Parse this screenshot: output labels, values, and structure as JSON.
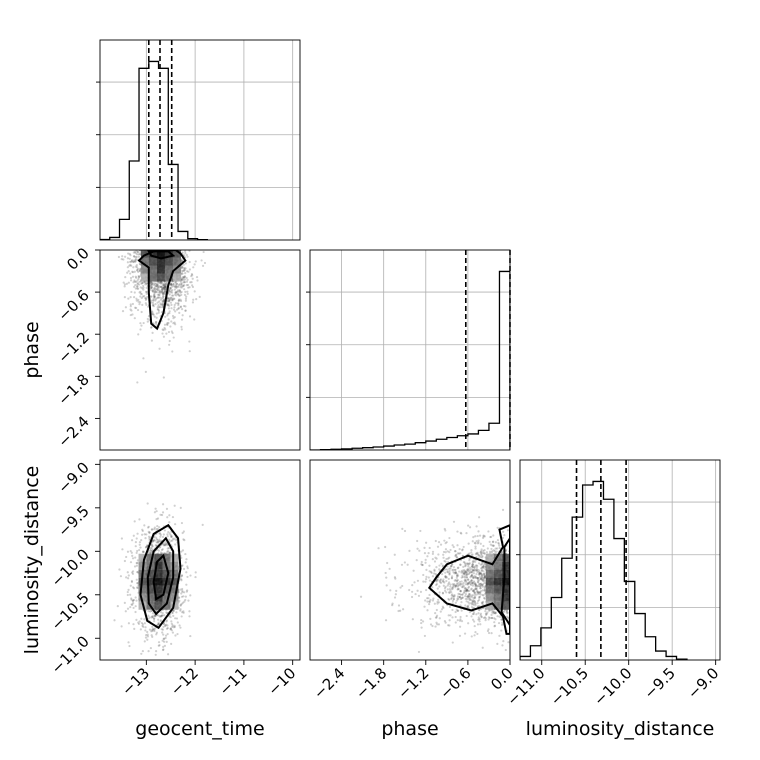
{
  "chart_data": {
    "type": "corner",
    "parameters": [
      "geocent_time",
      "phase",
      "luminosity_distance"
    ],
    "axes": {
      "geocent_time": {
        "label": "geocent_time",
        "range": [
          -13.95,
          -9.85
        ],
        "ticks": [
          -13,
          -12,
          -11,
          -10
        ],
        "tick_labels": [
          "−13",
          "−12",
          "−11",
          "−10"
        ]
      },
      "phase": {
        "label": "phase",
        "range": [
          -2.85,
          0.0
        ],
        "ticks": [
          -2.4,
          -1.8,
          -1.2,
          -0.6,
          0.0
        ],
        "tick_labels": [
          "−2.4",
          "−1.8",
          "−1.2",
          "−0.6",
          "0.0"
        ]
      },
      "luminosity_distance": {
        "label": "luminosity_distance",
        "range": [
          -11.25,
          -8.95
        ],
        "ticks": [
          -11.0,
          -10.5,
          -10.0,
          -9.5,
          -9.0
        ],
        "tick_labels": [
          "−11.0",
          "−10.5",
          "−10.0",
          "−9.5",
          "−9.0"
        ]
      }
    },
    "histograms": {
      "geocent_time": {
        "edges": [
          -13.95,
          -13.75,
          -13.55,
          -13.35,
          -13.15,
          -12.95,
          -12.75,
          -12.55,
          -12.35,
          -12.15,
          -11.95,
          -11.75
        ],
        "counts": [
          0.3,
          1.5,
          12,
          46,
          100,
          104,
          100,
          44,
          5,
          0.8,
          0.2
        ],
        "quantiles": [
          -12.95,
          -12.72,
          -12.48
        ],
        "grid": true
      },
      "phase": {
        "edges": [
          -2.85,
          -2.7,
          -2.55,
          -2.4,
          -2.25,
          -2.1,
          -1.95,
          -1.8,
          -1.65,
          -1.5,
          -1.35,
          -1.2,
          -1.05,
          -0.9,
          -0.75,
          -0.6,
          -0.45,
          -0.3,
          -0.15,
          0.0
        ],
        "counts": [
          0,
          0.2,
          0.4,
          0.6,
          1,
          1.3,
          1.7,
          2.2,
          2.8,
          3.3,
          4.1,
          5,
          6,
          7,
          8,
          9,
          11,
          15,
          100
        ],
        "quantiles": [
          -0.63,
          0.0
        ],
        "grid": true
      },
      "luminosity_distance": {
        "edges": [
          -11.25,
          -11.13,
          -11.01,
          -10.89,
          -10.77,
          -10.65,
          -10.53,
          -10.41,
          -10.29,
          -10.17,
          -10.05,
          -9.93,
          -9.81,
          -9.69,
          -9.57,
          -9.45,
          -9.33
        ],
        "counts": [
          2,
          8,
          18,
          35,
          57,
          80,
          98,
          100,
          90,
          68,
          44,
          26,
          13,
          5,
          2,
          0.5
        ],
        "quantiles": [
          -10.6,
          -10.32,
          -10.03
        ],
        "grid": true
      }
    },
    "scatter_panels": [
      {
        "x": "geocent_time",
        "y": "phase",
        "density_peak": [
          -12.7,
          -0.05
        ],
        "spread": [
          0.3,
          0.45
        ],
        "contours": [
          [
            [
              -12.85,
              -0.02
            ],
            [
              -13.05,
              -0.08
            ],
            [
              -13.15,
              -0.15
            ],
            [
              -12.95,
              -0.25
            ],
            [
              -12.95,
              -0.6
            ],
            [
              -12.9,
              -1.05
            ],
            [
              -12.78,
              -1.12
            ],
            [
              -12.65,
              -0.9
            ],
            [
              -12.55,
              -0.5
            ],
            [
              -12.45,
              -0.3
            ],
            [
              -12.2,
              -0.15
            ],
            [
              -12.3,
              -0.05
            ],
            [
              -12.4,
              0.0
            ]
          ],
          [
            [
              -12.95,
              -0.02
            ],
            [
              -12.9,
              -0.08
            ],
            [
              -12.7,
              -0.12
            ],
            [
              -12.45,
              -0.08
            ],
            [
              -12.55,
              -0.02
            ]
          ]
        ]
      },
      {
        "x": "geocent_time",
        "y": "luminosity_distance",
        "density_peak": [
          -12.75,
          -10.35
        ],
        "spread": [
          0.25,
          0.3
        ],
        "contours": [
          [
            [
              -12.55,
              -9.7
            ],
            [
              -12.35,
              -9.85
            ],
            [
              -12.3,
              -10.2
            ],
            [
              -12.45,
              -10.65
            ],
            [
              -12.75,
              -10.88
            ],
            [
              -12.98,
              -10.8
            ],
            [
              -13.12,
              -10.5
            ],
            [
              -13.05,
              -10.1
            ],
            [
              -12.85,
              -9.8
            ]
          ],
          [
            [
              -12.6,
              -9.85
            ],
            [
              -12.45,
              -10.0
            ],
            [
              -12.45,
              -10.3
            ],
            [
              -12.58,
              -10.6
            ],
            [
              -12.8,
              -10.72
            ],
            [
              -12.95,
              -10.6
            ],
            [
              -12.97,
              -10.3
            ],
            [
              -12.85,
              -10.0
            ]
          ],
          [
            [
              -12.65,
              -10.05
            ],
            [
              -12.55,
              -10.25
            ],
            [
              -12.65,
              -10.5
            ],
            [
              -12.8,
              -10.55
            ],
            [
              -12.85,
              -10.35
            ],
            [
              -12.78,
              -10.12
            ]
          ]
        ]
      },
      {
        "x": "phase",
        "y": "luminosity_distance",
        "density_peak": [
          -0.06,
          -10.35
        ],
        "spread": [
          0.6,
          0.25
        ],
        "contours": [
          [
            [
              0.0,
              -9.7
            ],
            [
              -0.15,
              -9.75
            ],
            [
              -0.1,
              -9.95
            ],
            [
              -0.25,
              -10.15
            ],
            [
              -0.6,
              -10.05
            ],
            [
              -0.9,
              -10.15
            ],
            [
              -1.05,
              -10.3
            ],
            [
              -1.15,
              -10.42
            ],
            [
              -0.9,
              -10.6
            ],
            [
              -0.55,
              -10.68
            ],
            [
              -0.25,
              -10.6
            ],
            [
              -0.1,
              -10.75
            ],
            [
              -0.05,
              -10.95
            ],
            [
              0.0,
              -10.95
            ]
          ],
          [
            [
              0.0,
              -9.85
            ],
            [
              -0.08,
              -9.95
            ],
            [
              -0.08,
              -10.3
            ],
            [
              -0.12,
              -10.7
            ],
            [
              0.0,
              -10.85
            ]
          ]
        ]
      }
    ]
  }
}
